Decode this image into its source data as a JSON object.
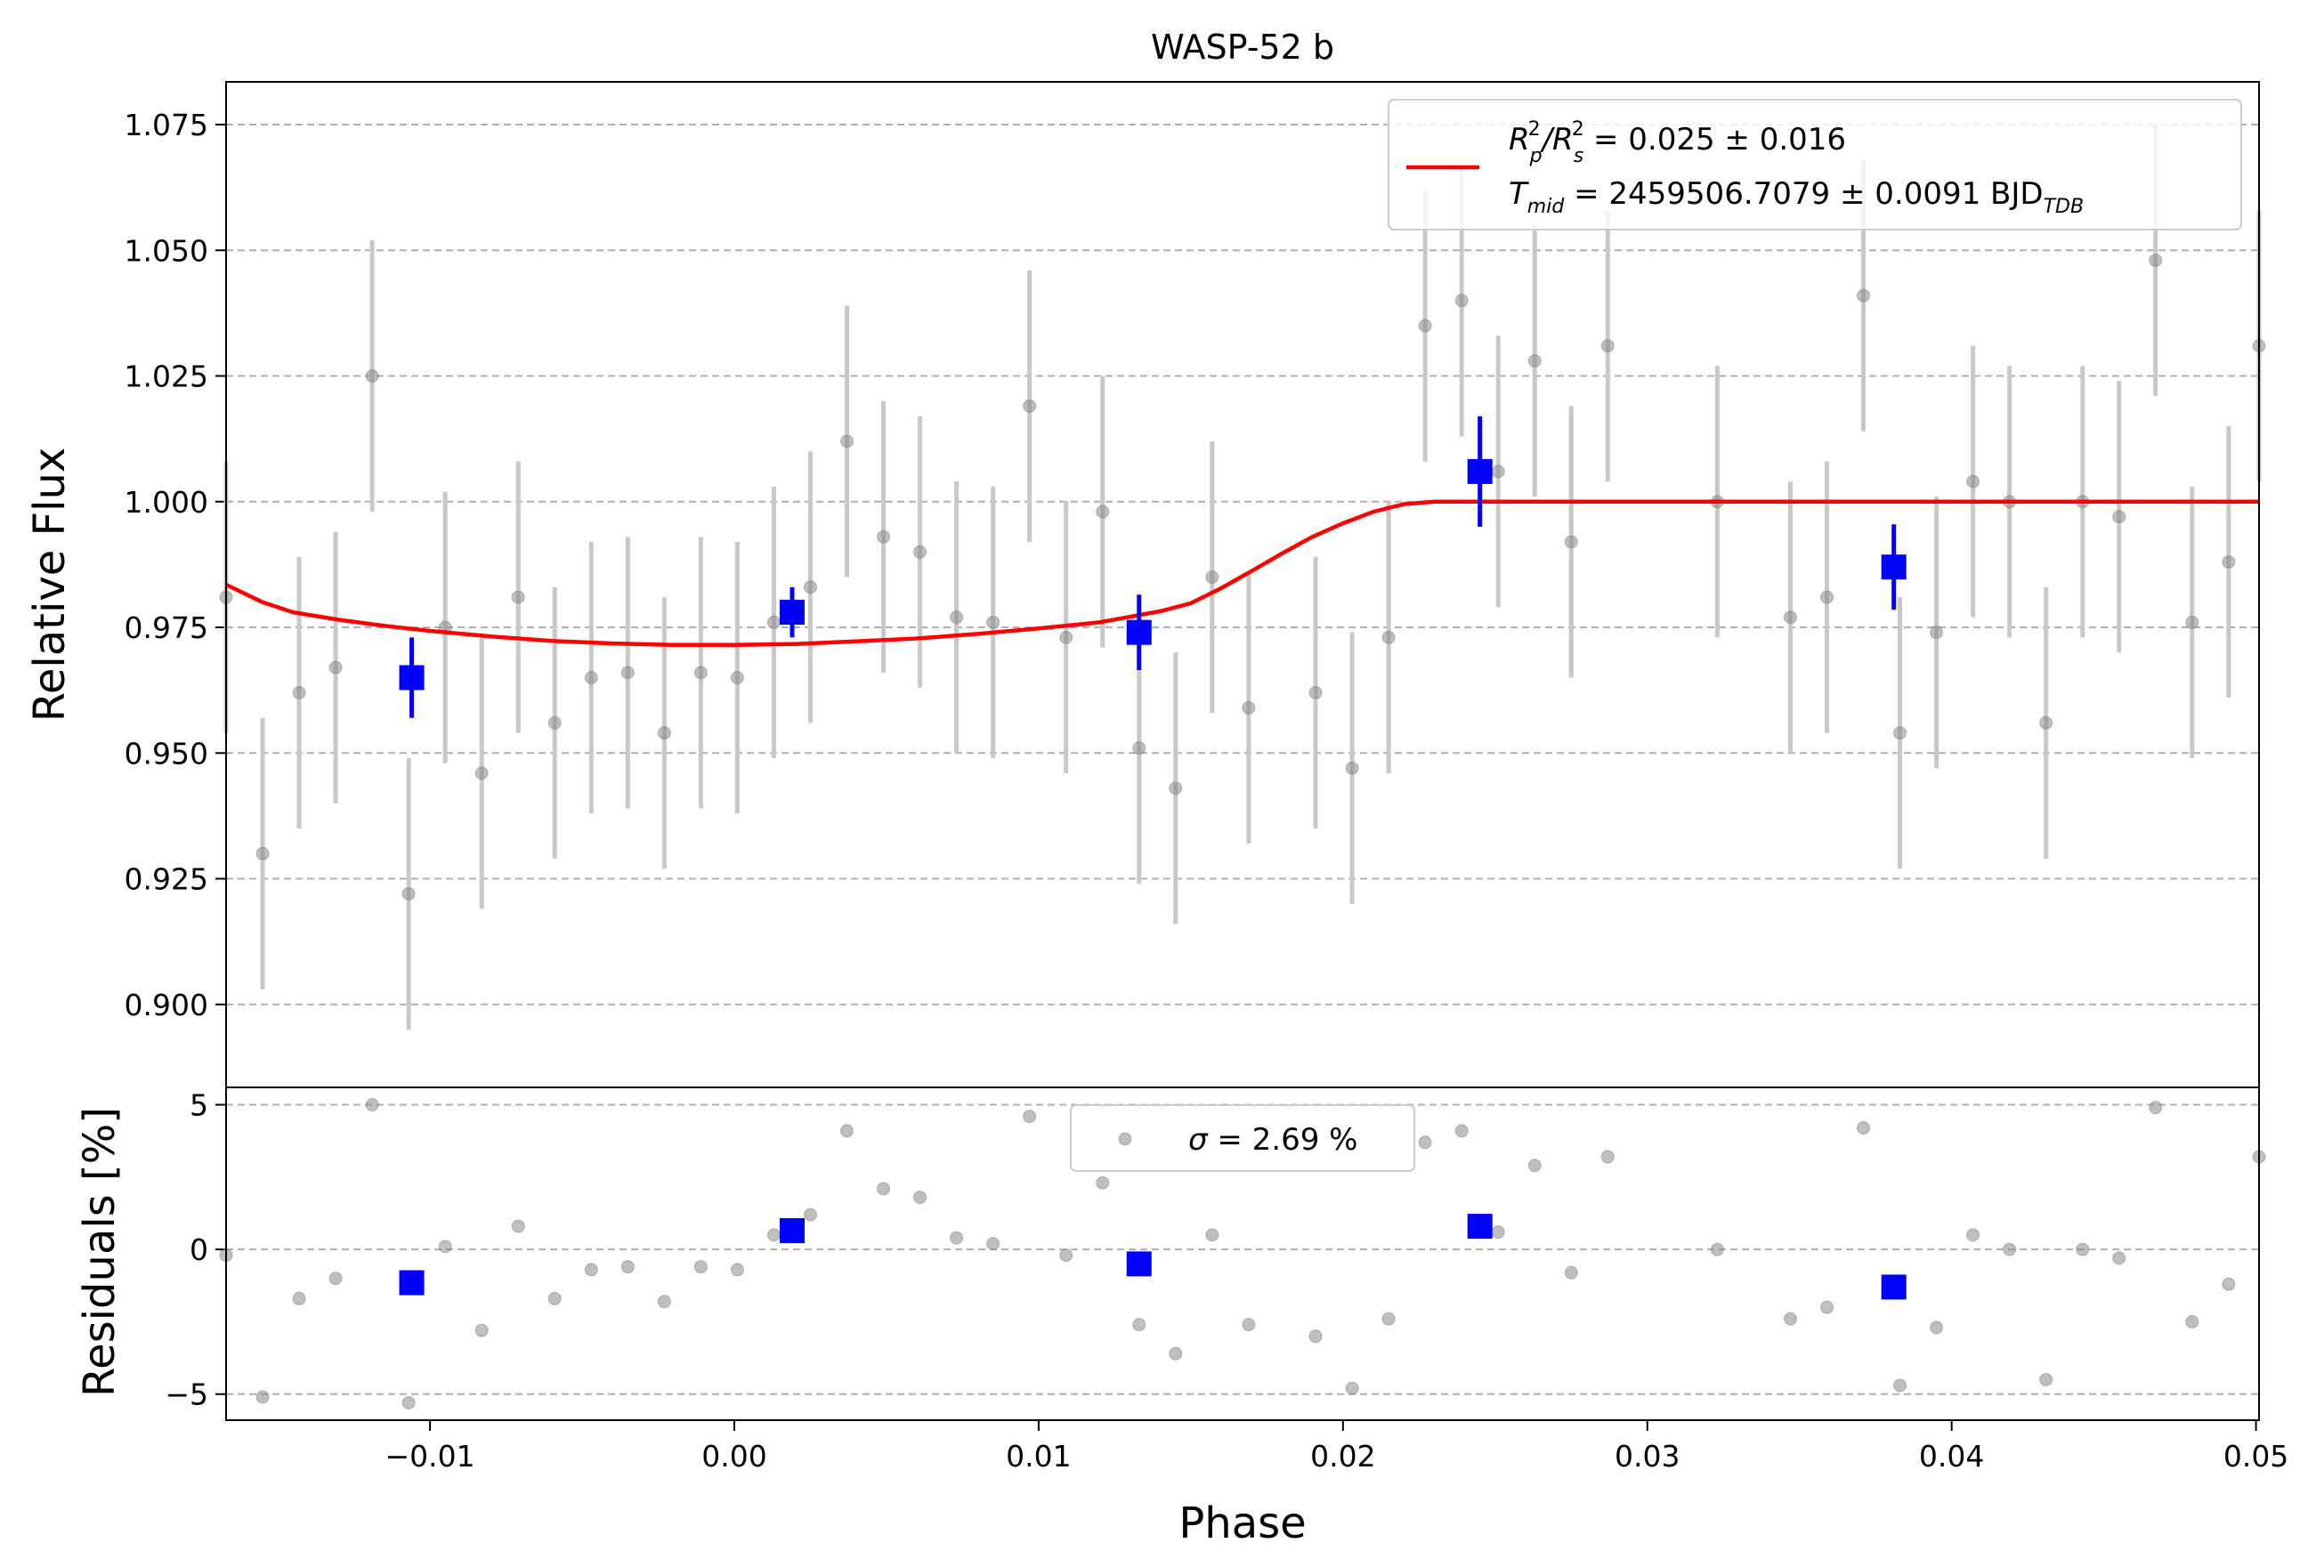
{
  "chart_data": [
    {
      "type": "scatter",
      "title": "WASP-52 b",
      "xlabel": "",
      "ylabel": "Relative Flux",
      "xlim": [
        -0.0167,
        0.0501
      ],
      "ylim": [
        0.8835,
        1.0835
      ],
      "yticks": [
        0.9,
        0.925,
        0.95,
        0.975,
        1.0,
        1.025,
        1.05,
        1.075
      ],
      "ytick_labels": [
        "0.900",
        "0.925",
        "0.950",
        "0.975",
        "1.000",
        "1.025",
        "1.050",
        "1.075"
      ],
      "grid": "y-dashed",
      "legend": {
        "placement": "top-right",
        "rp_prefix": "R",
        "rp_sub": "p",
        "rp_sup": "2",
        "rs_prefix": "/R",
        "rs_sub": "s",
        "rs_sup": "2",
        "rp_value": " = 0.025 ± 0.016",
        "tmid_prefix": "T",
        "tmid_sub": "mid",
        "tmid_value": " = 2459506.7079 ± 0.0091 BJD",
        "tmid_unit_sub": "TDB",
        "line_color": "#ff0000"
      },
      "colors": {
        "data": "#808080",
        "binned": "#0000ff",
        "model": "#ff0000",
        "errorbar": "#c8c8c8"
      },
      "series": [
        {
          "kind": "data",
          "x": [
            -0.0167,
            -0.0155,
            -0.0143,
            -0.0131,
            -0.0119,
            -0.0107,
            -0.0095,
            -0.0083,
            -0.0071,
            -0.0059,
            -0.0047,
            -0.0035,
            -0.0023,
            -0.0011,
            0.0001,
            0.0013,
            0.0025,
            0.0037,
            0.0049,
            0.0061,
            0.0073,
            0.0085,
            0.0097,
            0.0109,
            0.0121,
            0.0133,
            0.0145,
            0.0157,
            0.0169,
            0.0191,
            0.0203,
            0.0215,
            0.0227,
            0.0239,
            0.0251,
            0.0263,
            0.0275,
            0.0287,
            0.0323,
            0.0347,
            0.0359,
            0.0371,
            0.0383,
            0.0395,
            0.0407,
            0.0419,
            0.0431,
            0.0443,
            0.0455,
            0.0467,
            0.0479,
            0.0491,
            0.0501
          ],
          "y": [
            0.981,
            0.93,
            0.962,
            0.967,
            1.025,
            0.922,
            0.975,
            0.946,
            0.981,
            0.956,
            0.965,
            0.966,
            0.954,
            0.966,
            0.965,
            0.976,
            0.983,
            1.012,
            0.993,
            0.99,
            0.977,
            0.976,
            1.019,
            0.973,
            0.998,
            0.951,
            0.943,
            0.985,
            0.959,
            0.962,
            0.947,
            0.973,
            1.035,
            1.04,
            1.006,
            1.028,
            0.992,
            1.031,
            1.0,
            0.977,
            0.981,
            1.041,
            0.954,
            0.974,
            1.004,
            1.0,
            0.956,
            1.0,
            0.997,
            1.048,
            0.976,
            0.988,
            1.031
          ],
          "yerr": 0.027
        },
        {
          "kind": "binned",
          "x": [
            -0.0106,
            0.0019,
            0.0133,
            0.0245,
            0.0381
          ],
          "y": [
            0.965,
            0.978,
            0.974,
            1.006,
            0.987
          ],
          "yerr": [
            0.008,
            0.005,
            0.0075,
            0.011,
            0.0085
          ]
        },
        {
          "kind": "model",
          "x": [
            -0.0167,
            -0.0155,
            -0.0145,
            -0.013,
            -0.0115,
            -0.01,
            -0.008,
            -0.006,
            -0.004,
            -0.002,
            0.0,
            0.002,
            0.004,
            0.006,
            0.008,
            0.01,
            0.012,
            0.014,
            0.015,
            0.016,
            0.017,
            0.018,
            0.019,
            0.02,
            0.021,
            0.022,
            0.023,
            0.0235,
            0.024,
            0.03,
            0.04,
            0.0501
          ],
          "y": [
            0.9835,
            0.98,
            0.978,
            0.9765,
            0.9753,
            0.9743,
            0.9732,
            0.9723,
            0.9718,
            0.9715,
            0.9715,
            0.9717,
            0.9722,
            0.9728,
            0.9737,
            0.9748,
            0.976,
            0.9782,
            0.9798,
            0.9828,
            0.9862,
            0.9897,
            0.993,
            0.9957,
            0.998,
            0.9995,
            1.0,
            1.0,
            1.0,
            1.0,
            1.0,
            1.0
          ]
        }
      ]
    },
    {
      "type": "scatter",
      "title": "",
      "xlabel": "Phase",
      "ylabel": "Residuals [%]",
      "xlim": [
        -0.0167,
        0.0501
      ],
      "ylim": [
        -5.9,
        5.6
      ],
      "yticks": [
        -5,
        0,
        5
      ],
      "ytick_labels": [
        "−5",
        "0",
        "5"
      ],
      "xticks": [
        -0.01,
        0.0,
        0.01,
        0.02,
        0.03,
        0.04,
        0.05
      ],
      "xtick_labels": [
        "−0.01",
        "0.00",
        "0.01",
        "0.02",
        "0.03",
        "0.04",
        "0.05"
      ],
      "grid": "y-dashed",
      "legend": {
        "placement": "top-center",
        "sigma_symbol": "σ",
        "sigma_value": " = 2.69 %"
      },
      "series": [
        {
          "kind": "data",
          "x": [
            -0.0167,
            -0.0155,
            -0.0143,
            -0.0131,
            -0.0119,
            -0.0107,
            -0.0095,
            -0.0083,
            -0.0071,
            -0.0059,
            -0.0047,
            -0.0035,
            -0.0023,
            -0.0011,
            0.0001,
            0.0013,
            0.0025,
            0.0037,
            0.0049,
            0.0061,
            0.0073,
            0.0085,
            0.0097,
            0.0109,
            0.0121,
            0.0133,
            0.0145,
            0.0157,
            0.0169,
            0.0191,
            0.0203,
            0.0215,
            0.0227,
            0.0239,
            0.0251,
            0.0263,
            0.0275,
            0.0287,
            0.0323,
            0.0347,
            0.0359,
            0.0371,
            0.0383,
            0.0395,
            0.0407,
            0.0419,
            0.0431,
            0.0443,
            0.0455,
            0.0467,
            0.0479,
            0.0491,
            0.0501
          ],
          "y": [
            -0.2,
            -5.1,
            -1.7,
            -1.0,
            5.0,
            -5.3,
            0.1,
            -2.8,
            0.8,
            -1.7,
            -0.7,
            -0.6,
            -1.8,
            -0.6,
            -0.7,
            0.5,
            1.2,
            4.1,
            2.1,
            1.8,
            0.4,
            0.2,
            4.6,
            -0.2,
            2.3,
            -2.6,
            -3.6,
            0.5,
            -2.6,
            -3.0,
            -4.8,
            -2.4,
            3.7,
            4.1,
            0.6,
            2.9,
            -0.8,
            3.2,
            0.0,
            -2.4,
            -2.0,
            4.2,
            -4.7,
            -2.7,
            0.5,
            0.0,
            -4.5,
            0.0,
            -0.3,
            4.9,
            -2.5,
            -1.2,
            3.2
          ]
        },
        {
          "kind": "binned",
          "x": [
            -0.0106,
            0.0019,
            0.0133,
            0.0245,
            0.0381
          ],
          "y": [
            -1.15,
            0.65,
            -0.5,
            0.8,
            -1.3
          ]
        }
      ]
    }
  ]
}
